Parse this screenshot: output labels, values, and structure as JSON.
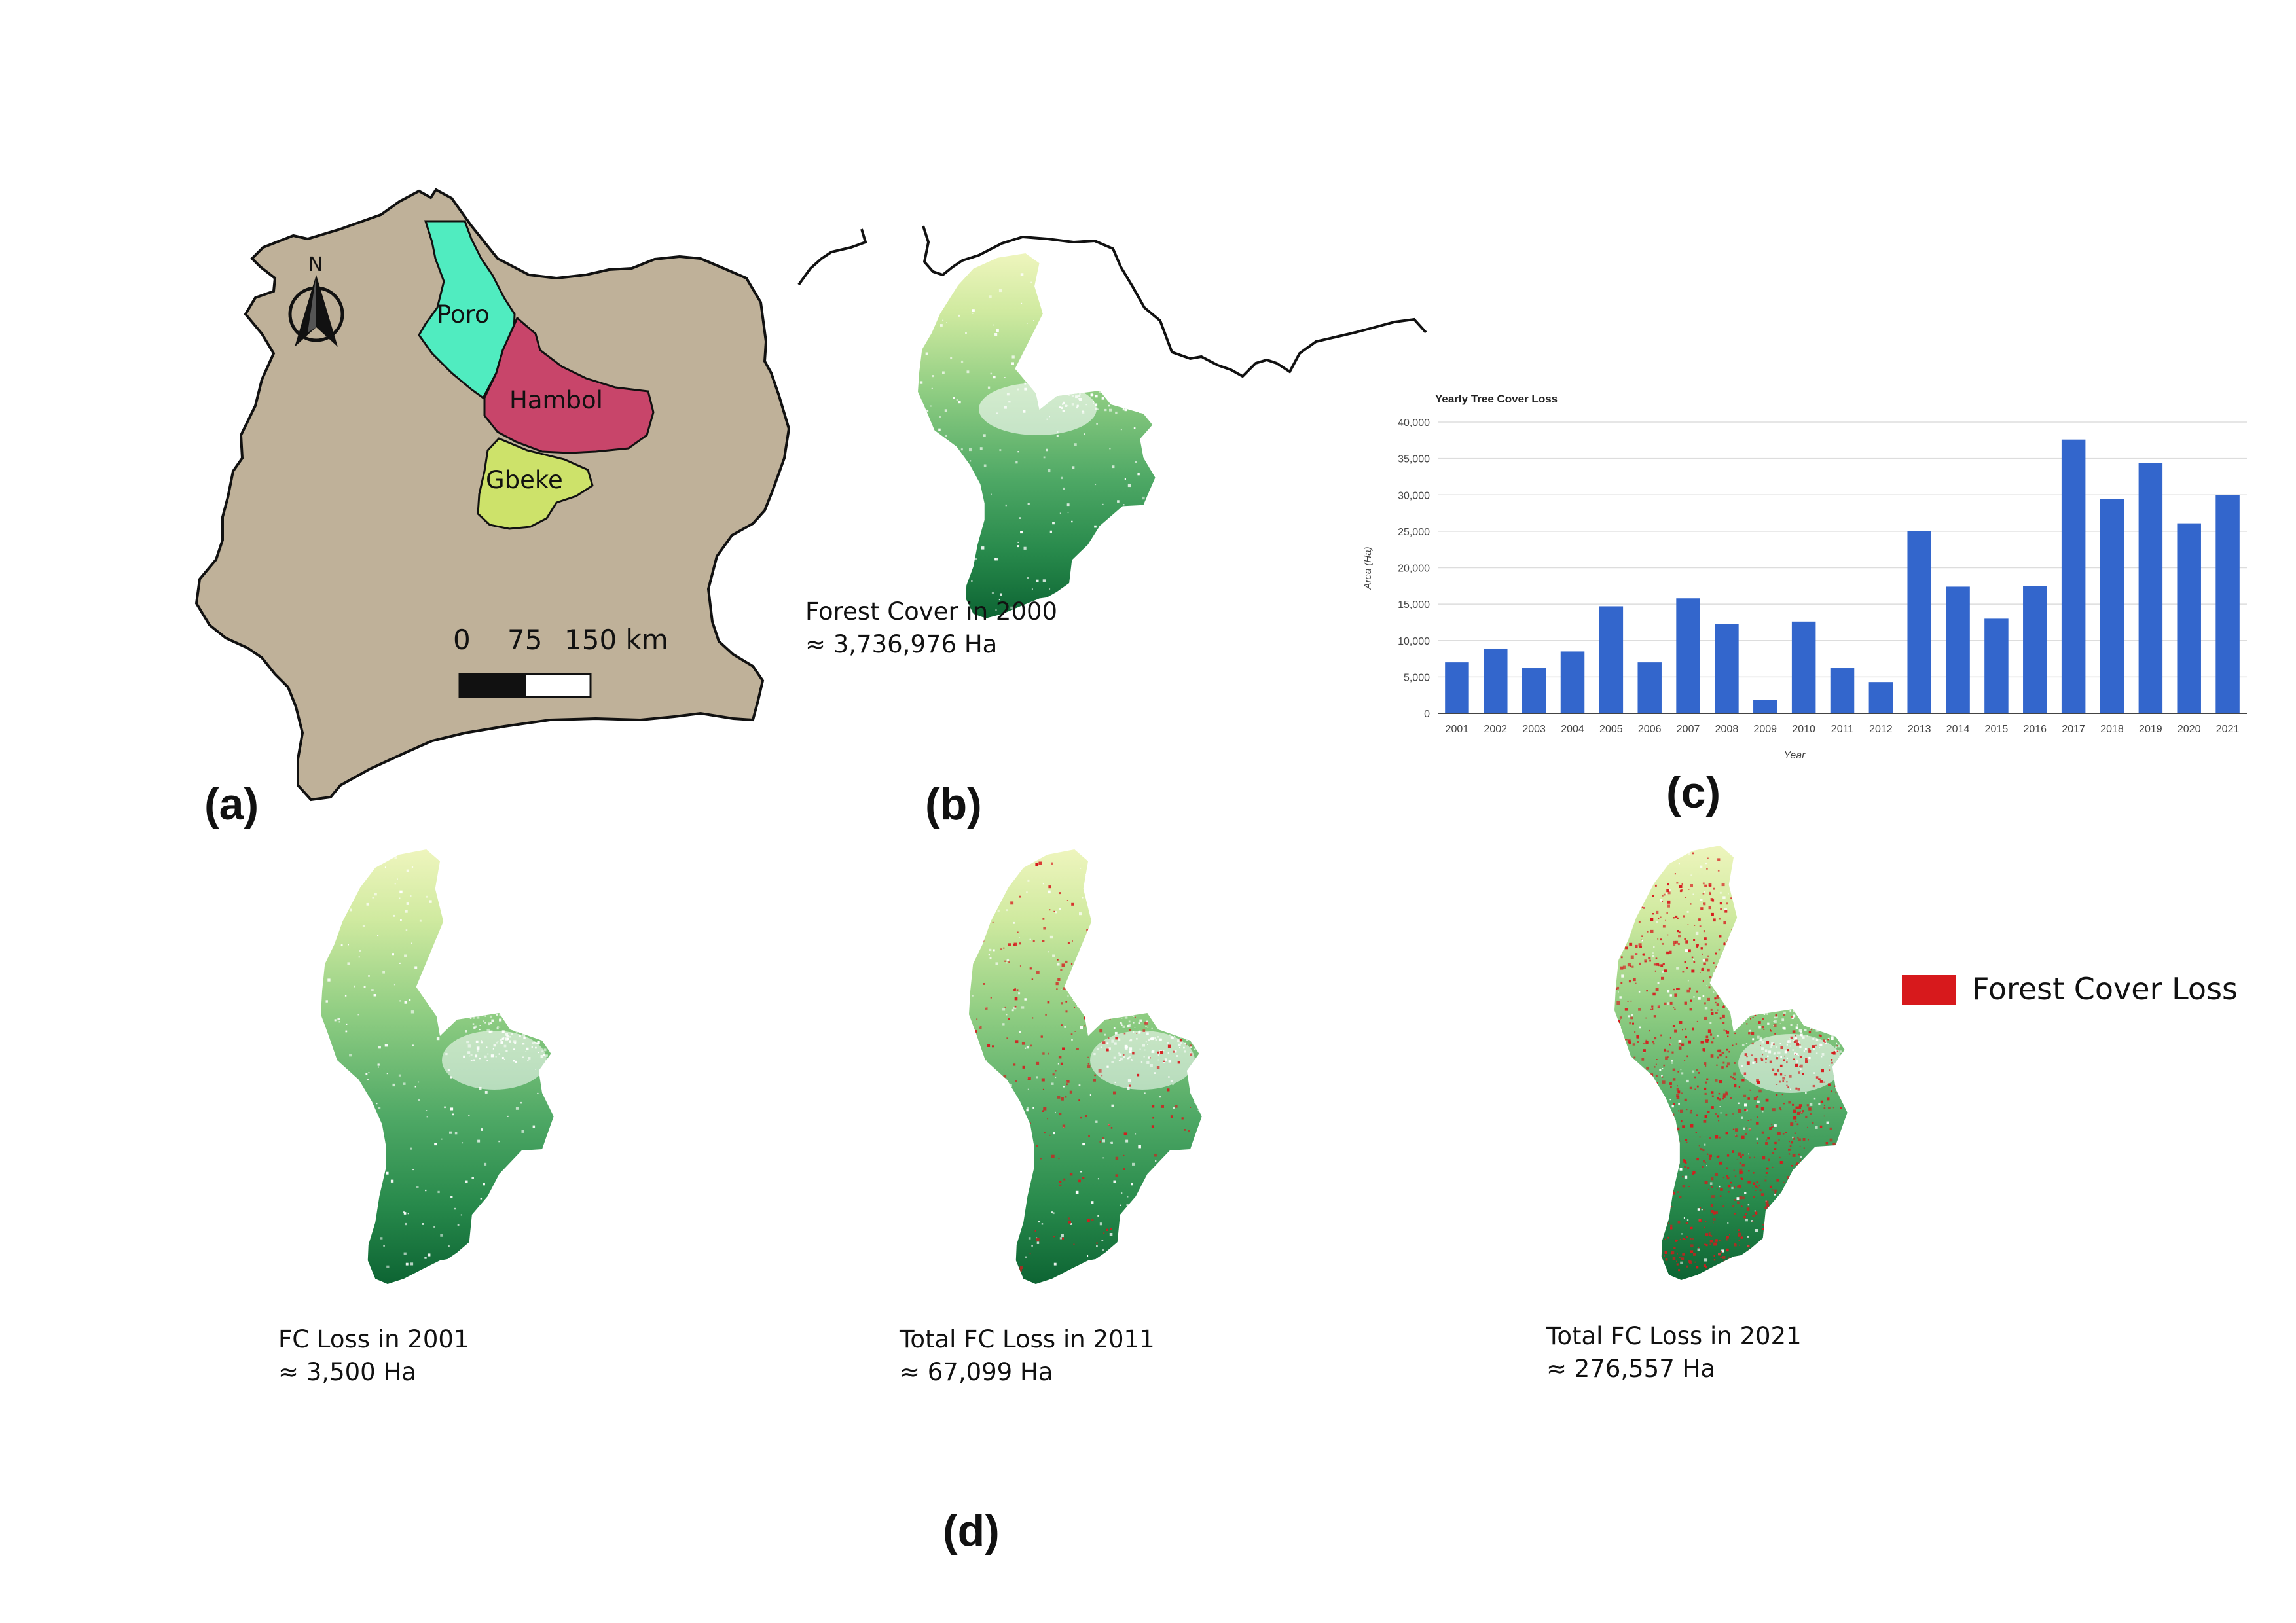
{
  "panel_a": {
    "label": "(a)",
    "north": "N",
    "scale_labels": [
      "0",
      "75",
      "150 km"
    ],
    "regions": [
      {
        "name": "Poro",
        "color": "#50ecc0"
      },
      {
        "name": "Hambol",
        "color": "#c8456a"
      },
      {
        "name": "Gbeke",
        "color": "#cde26a"
      }
    ],
    "country_color": "#bfb199"
  },
  "panel_b": {
    "label": "(b)",
    "caption_line1": "Forest Cover in 2000",
    "caption_line2": "≈ 3,736,976 Ha"
  },
  "panel_c": {
    "label": "(c)"
  },
  "panel_d": {
    "label": "(d)",
    "maps": [
      {
        "line1": "FC Loss in 2001",
        "line2": "≈ 3,500 Ha",
        "loss_density": 0
      },
      {
        "line1": "Total FC Loss in 2011",
        "line2": "≈ 67,099 Ha",
        "loss_density": 0.15
      },
      {
        "line1": "Total FC Loss in 2021",
        "line2": "≈ 276,557 Ha",
        "loss_density": 0.6
      }
    ],
    "legend_label": "Forest Cover Loss",
    "loss_color": "#d7191c"
  },
  "chart_data": {
    "type": "bar",
    "title": "Yearly Tree Cover Loss",
    "xlabel": "Year",
    "ylabel": "Area (Ha)",
    "ylim": [
      0,
      40000
    ],
    "yticks": [
      "0",
      "5,000",
      "10,000",
      "15,000",
      "20,000",
      "25,000",
      "30,000",
      "35,000",
      "40,000"
    ],
    "categories": [
      "2001",
      "2002",
      "2003",
      "2004",
      "2005",
      "2006",
      "2007",
      "2008",
      "2009",
      "2010",
      "2011",
      "2012",
      "2013",
      "2014",
      "2015",
      "2016",
      "2017",
      "2018",
      "2019",
      "2020",
      "2021"
    ],
    "values": [
      7000,
      8900,
      6200,
      8500,
      14700,
      7000,
      15800,
      12300,
      1800,
      12600,
      6200,
      4300,
      25000,
      17400,
      13000,
      17500,
      37600,
      29400,
      34400,
      26100,
      30000
    ],
    "bar_color": "#3366cc",
    "grid": true
  }
}
